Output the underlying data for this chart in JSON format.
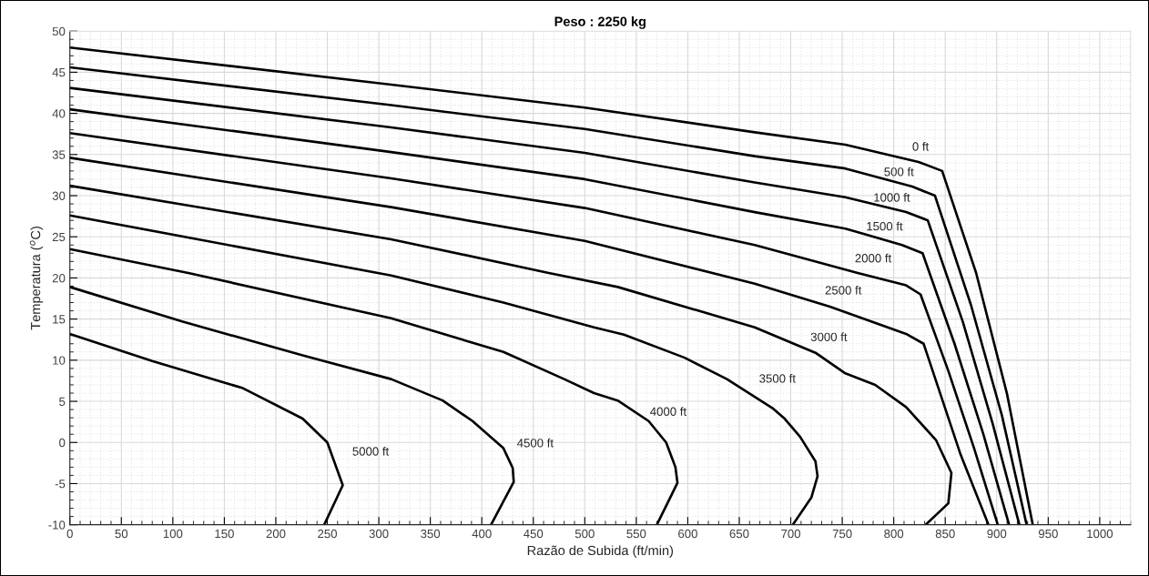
{
  "chart_data": {
    "type": "line",
    "title": "Peso : 2250 kg",
    "xlabel": "Razão de Subida (ft/min)",
    "ylabel": "Temperatura ($^{o}$C)",
    "xlim": [
      0,
      1030
    ],
    "ylim": [
      -10,
      50
    ],
    "xticks": [
      0,
      50,
      100,
      150,
      200,
      250,
      300,
      350,
      400,
      450,
      500,
      550,
      600,
      650,
      700,
      750,
      800,
      850,
      900,
      950,
      1000
    ],
    "yticks": [
      -10,
      -5,
      0,
      5,
      10,
      15,
      20,
      25,
      30,
      35,
      40,
      45,
      50
    ],
    "grid": true,
    "marker": "none",
    "line_style": "solid",
    "series": [
      {
        "name": "0 ft",
        "color": "#000000",
        "x": [
          0,
          312,
          500,
          665,
          753,
          824,
          847,
          880,
          910,
          935
        ],
        "values": [
          48.0,
          43.5,
          40.7,
          37.7,
          36.2,
          34.1,
          33.0,
          20.6,
          5.9,
          -10
        ]
      },
      {
        "name": "500 ft",
        "color": "#000000",
        "x": [
          0,
          312,
          500,
          665,
          753,
          818,
          840,
          875,
          905,
          929
        ],
        "values": [
          45.6,
          41.0,
          38.1,
          34.8,
          33.3,
          31.1,
          30.0,
          16.7,
          3.3,
          -10
        ]
      },
      {
        "name": "1000 ft",
        "color": "#000000",
        "x": [
          0,
          312,
          500,
          665,
          753,
          812,
          833,
          867,
          896,
          922
        ],
        "values": [
          43.1,
          38.3,
          35.2,
          31.6,
          29.8,
          28.0,
          27.0,
          14.7,
          2.3,
          -10
        ]
      },
      {
        "name": "1500 ft",
        "color": "#000000",
        "x": [
          0,
          312,
          500,
          665,
          753,
          808,
          828,
          859,
          887,
          912
        ],
        "values": [
          40.5,
          35.3,
          32.0,
          28.0,
          26.0,
          24.0,
          23.0,
          12.0,
          1.0,
          -10
        ]
      },
      {
        "name": "2000 ft",
        "color": "#000000",
        "x": [
          0,
          312,
          500,
          665,
          765,
          812,
          826,
          853,
          878,
          901
        ],
        "values": [
          37.6,
          32.1,
          28.5,
          24.0,
          20.6,
          19.1,
          18.0,
          8.7,
          -0.7,
          -10
        ]
      },
      {
        "name": "2500 ft",
        "color": "#000000",
        "x": [
          0,
          312,
          500,
          665,
          738,
          812,
          829,
          865,
          892
        ],
        "values": [
          34.6,
          28.6,
          24.5,
          19.3,
          16.5,
          13.2,
          12.0,
          -1.5,
          -10
        ]
      },
      {
        "name": "3000 ft",
        "color": "#000000",
        "x": [
          0,
          312,
          465,
          532,
          665,
          724,
          753,
          782,
          812,
          841,
          856,
          853,
          831
        ],
        "values": [
          31.2,
          24.7,
          20.6,
          18.9,
          14.0,
          10.9,
          8.4,
          7.0,
          4.3,
          0.3,
          -3.7,
          -7.4,
          -10
        ]
      },
      {
        "name": "3500 ft",
        "color": "#000000",
        "x": [
          0,
          312,
          421,
          509,
          538,
          597,
          638,
          682,
          694,
          709,
          724,
          726,
          720,
          702
        ],
        "values": [
          27.6,
          20.3,
          17.0,
          14.0,
          13.1,
          10.3,
          7.7,
          4.2,
          2.9,
          0.7,
          -2.3,
          -4.1,
          -6.7,
          -10
        ]
      },
      {
        "name": "4000 ft",
        "color": "#000000",
        "x": [
          0,
          115,
          312,
          421,
          480,
          509,
          532,
          562,
          579,
          588,
          590,
          570
        ],
        "values": [
          23.5,
          20.6,
          15.1,
          11.0,
          7.7,
          6.0,
          5.1,
          2.6,
          0.0,
          -3.0,
          -4.9,
          -10
        ]
      },
      {
        "name": "4500 ft",
        "color": "#000000",
        "x": [
          0,
          109,
          226,
          312,
          362,
          391,
          421,
          430,
          431,
          409
        ],
        "values": [
          18.9,
          14.7,
          10.6,
          7.7,
          5.1,
          2.6,
          -0.7,
          -3.1,
          -4.8,
          -10
        ]
      },
      {
        "name": "5000 ft",
        "color": "#000000",
        "x": [
          0,
          80,
          168,
          226,
          250,
          265,
          247
        ],
        "values": [
          13.2,
          9.9,
          6.6,
          2.9,
          0.0,
          -5.2,
          -10
        ]
      }
    ]
  }
}
